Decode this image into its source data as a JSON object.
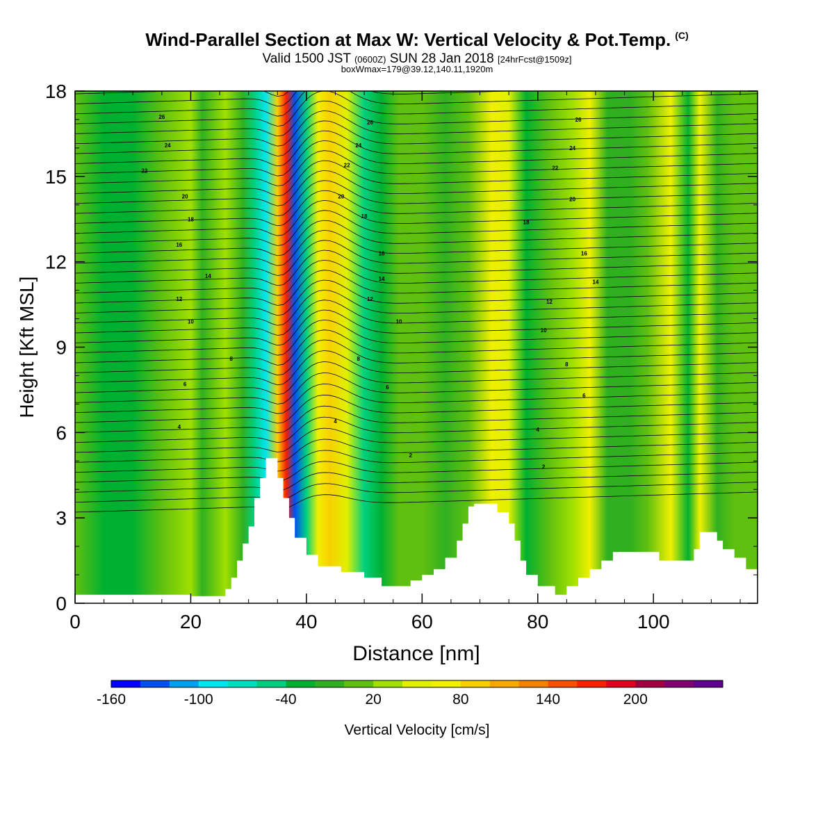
{
  "title": {
    "main": "Wind-Parallel Section at Max W: Vertical Velocity & Pot.Temp.",
    "copyright": "(C)",
    "valid_prefix": "Valid 1500 JST",
    "valid_utc": "(0600Z)",
    "valid_date": "SUN 28 Jan 2018",
    "forecast": "[24hrFcst@1509z]",
    "boxwmax": "boxWmax=179@39.12,140.11,1920m"
  },
  "chart_data": {
    "type": "heatmap",
    "xlabel": "Distance [nm]",
    "ylabel": "Height [Kft MSL]",
    "xlim": [
      0,
      118
    ],
    "ylim": [
      0,
      18
    ],
    "xticks": [
      0,
      20,
      40,
      60,
      80,
      100
    ],
    "xtick_labels": [
      "0",
      "20",
      "40",
      "60",
      "80",
      "100"
    ],
    "yticks": [
      0,
      3,
      6,
      9,
      12,
      15,
      18
    ],
    "ytick_labels": [
      "0",
      "3",
      "6",
      "9",
      "12",
      "15",
      "18"
    ],
    "colorbar": {
      "label": "Vertical Velocity [cm/s]",
      "min": -160,
      "step": 20,
      "labels": [
        "-160",
        "-100",
        "-40",
        "20",
        "80",
        "140",
        "200"
      ],
      "label_values": [
        -160,
        -100,
        -40,
        20,
        80,
        140,
        200
      ],
      "colors": [
        "#0000ff",
        "#0050f0",
        "#00a0f0",
        "#00e6f0",
        "#00e0c0",
        "#00d080",
        "#00b030",
        "#30b020",
        "#60c010",
        "#a0e000",
        "#e0f000",
        "#f0f000",
        "#f8d000",
        "#f8a800",
        "#f88000",
        "#f85000",
        "#f82000",
        "#e00020",
        "#a00040",
        "#800070",
        "#600090"
      ]
    },
    "columns_note": "vertical velocity bands (cm/s) along the section",
    "columns": [
      {
        "x": 0,
        "w": 5
      },
      {
        "x": 5,
        "w": -40
      },
      {
        "x": 10,
        "w": -30
      },
      {
        "x": 15,
        "w": 0
      },
      {
        "x": 20,
        "w": 30
      },
      {
        "x": 22,
        "w": -20
      },
      {
        "x": 26,
        "w": 20
      },
      {
        "x": 29,
        "w": -20
      },
      {
        "x": 31,
        "w": -50
      },
      {
        "x": 33,
        "w": -100
      },
      {
        "x": 35,
        "w": 90
      },
      {
        "x": 36.5,
        "w": 170
      },
      {
        "x": 38,
        "w": -140
      },
      {
        "x": 40,
        "w": -60
      },
      {
        "x": 42,
        "w": 60
      },
      {
        "x": 44,
        "w": 80
      },
      {
        "x": 47,
        "w": 40
      },
      {
        "x": 50,
        "w": -50
      },
      {
        "x": 53,
        "w": -30
      },
      {
        "x": 56,
        "w": 0
      },
      {
        "x": 60,
        "w": 10
      },
      {
        "x": 64,
        "w": -10
      },
      {
        "x": 68,
        "w": 10
      },
      {
        "x": 72,
        "w": 60
      },
      {
        "x": 75,
        "w": 40
      },
      {
        "x": 78,
        "w": -30
      },
      {
        "x": 82,
        "w": 0
      },
      {
        "x": 86,
        "w": 30
      },
      {
        "x": 89,
        "w": 60
      },
      {
        "x": 92,
        "w": -20
      },
      {
        "x": 96,
        "w": -10
      },
      {
        "x": 99,
        "w": 0
      },
      {
        "x": 103,
        "w": 60
      },
      {
        "x": 106,
        "w": -30
      },
      {
        "x": 108,
        "w": 60
      },
      {
        "x": 111,
        "w": -20
      },
      {
        "x": 114,
        "w": 10
      },
      {
        "x": 118,
        "w": 10
      }
    ],
    "terrain": [
      [
        0,
        0.3
      ],
      [
        20,
        0.3
      ],
      [
        20,
        0.25
      ],
      [
        26,
        0.25
      ],
      [
        26,
        0.5
      ],
      [
        27,
        0.5
      ],
      [
        27,
        0.9
      ],
      [
        28,
        0.9
      ],
      [
        28,
        1.5
      ],
      [
        29,
        1.5
      ],
      [
        29,
        2.1
      ],
      [
        30,
        2.1
      ],
      [
        30,
        2.7
      ],
      [
        31,
        2.7
      ],
      [
        31,
        3.7
      ],
      [
        32,
        3.7
      ],
      [
        32,
        4.4
      ],
      [
        33,
        4.4
      ],
      [
        33,
        5.1
      ],
      [
        35,
        5.1
      ],
      [
        35,
        4.4
      ],
      [
        36,
        4.4
      ],
      [
        36,
        3.7
      ],
      [
        37,
        3.7
      ],
      [
        37,
        3.0
      ],
      [
        38,
        3.0
      ],
      [
        38,
        2.3
      ],
      [
        40,
        2.3
      ],
      [
        40,
        1.7
      ],
      [
        42,
        1.7
      ],
      [
        42,
        1.3
      ],
      [
        46,
        1.3
      ],
      [
        46,
        1.1
      ],
      [
        50,
        1.1
      ],
      [
        50,
        0.9
      ],
      [
        53,
        0.9
      ],
      [
        53,
        0.6
      ],
      [
        58,
        0.6
      ],
      [
        58,
        0.8
      ],
      [
        60,
        0.8
      ],
      [
        60,
        1.0
      ],
      [
        62,
        1.0
      ],
      [
        62,
        1.2
      ],
      [
        64,
        1.2
      ],
      [
        64,
        1.6
      ],
      [
        66,
        1.6
      ],
      [
        66,
        2.2
      ],
      [
        67,
        2.2
      ],
      [
        67,
        2.8
      ],
      [
        68,
        2.8
      ],
      [
        68,
        3.4
      ],
      [
        69,
        3.4
      ],
      [
        69,
        3.5
      ],
      [
        73,
        3.5
      ],
      [
        73,
        3.2
      ],
      [
        75,
        3.2
      ],
      [
        75,
        2.8
      ],
      [
        76,
        2.8
      ],
      [
        76,
        2.2
      ],
      [
        77,
        2.2
      ],
      [
        77,
        1.5
      ],
      [
        78,
        1.5
      ],
      [
        78,
        1.0
      ],
      [
        80,
        1.0
      ],
      [
        80,
        0.6
      ],
      [
        83,
        0.6
      ],
      [
        83,
        0.3
      ],
      [
        85,
        0.3
      ],
      [
        85,
        0.6
      ],
      [
        87,
        0.6
      ],
      [
        87,
        0.9
      ],
      [
        89,
        0.9
      ],
      [
        89,
        1.2
      ],
      [
        91,
        1.2
      ],
      [
        91,
        1.5
      ],
      [
        93,
        1.5
      ],
      [
        93,
        1.8
      ],
      [
        101,
        1.8
      ],
      [
        101,
        1.5
      ],
      [
        107,
        1.5
      ],
      [
        107,
        1.9
      ],
      [
        108,
        1.9
      ],
      [
        108,
        2.5
      ],
      [
        111,
        2.5
      ],
      [
        111,
        2.2
      ],
      [
        112,
        2.2
      ],
      [
        112,
        1.9
      ],
      [
        114,
        1.9
      ],
      [
        114,
        1.6
      ],
      [
        116,
        1.6
      ],
      [
        116,
        1.2
      ],
      [
        118,
        1.2
      ]
    ],
    "theta_contour_labels": [
      {
        "x": 15,
        "y": 17.1,
        "text": "26"
      },
      {
        "x": 16,
        "y": 16.1,
        "text": "24"
      },
      {
        "x": 12,
        "y": 15.2,
        "text": "22"
      },
      {
        "x": 19,
        "y": 14.3,
        "text": "20"
      },
      {
        "x": 20,
        "y": 13.5,
        "text": "18"
      },
      {
        "x": 18,
        "y": 12.6,
        "text": "16"
      },
      {
        "x": 23,
        "y": 11.5,
        "text": "14"
      },
      {
        "x": 18,
        "y": 10.7,
        "text": "12"
      },
      {
        "x": 20,
        "y": 9.9,
        "text": "10"
      },
      {
        "x": 27,
        "y": 8.6,
        "text": "8"
      },
      {
        "x": 19,
        "y": 7.7,
        "text": "6"
      },
      {
        "x": 18,
        "y": 6.2,
        "text": "4"
      },
      {
        "x": 51,
        "y": 16.9,
        "text": "26"
      },
      {
        "x": 49,
        "y": 16.1,
        "text": "24"
      },
      {
        "x": 47,
        "y": 15.4,
        "text": "22"
      },
      {
        "x": 46,
        "y": 14.3,
        "text": "20"
      },
      {
        "x": 50,
        "y": 13.6,
        "text": "18"
      },
      {
        "x": 53,
        "y": 12.3,
        "text": "16"
      },
      {
        "x": 53,
        "y": 11.4,
        "text": "14"
      },
      {
        "x": 51,
        "y": 10.7,
        "text": "12"
      },
      {
        "x": 56,
        "y": 9.9,
        "text": "10"
      },
      {
        "x": 49,
        "y": 8.6,
        "text": "8"
      },
      {
        "x": 54,
        "y": 7.6,
        "text": "6"
      },
      {
        "x": 45,
        "y": 6.4,
        "text": "4"
      },
      {
        "x": 58,
        "y": 5.2,
        "text": "2"
      },
      {
        "x": 87,
        "y": 17.0,
        "text": "26"
      },
      {
        "x": 86,
        "y": 16.0,
        "text": "24"
      },
      {
        "x": 83,
        "y": 15.3,
        "text": "22"
      },
      {
        "x": 86,
        "y": 14.2,
        "text": "20"
      },
      {
        "x": 78,
        "y": 13.4,
        "text": "18"
      },
      {
        "x": 88,
        "y": 12.3,
        "text": "16"
      },
      {
        "x": 90,
        "y": 11.3,
        "text": "14"
      },
      {
        "x": 82,
        "y": 10.6,
        "text": "12"
      },
      {
        "x": 81,
        "y": 9.6,
        "text": "10"
      },
      {
        "x": 85,
        "y": 8.4,
        "text": "8"
      },
      {
        "x": 88,
        "y": 7.3,
        "text": "6"
      },
      {
        "x": 80,
        "y": 6.1,
        "text": "4"
      },
      {
        "x": 81,
        "y": 4.8,
        "text": "2"
      }
    ]
  }
}
